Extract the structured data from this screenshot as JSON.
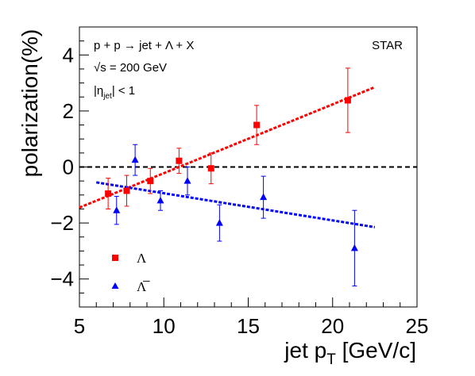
{
  "chart_data": {
    "type": "scatter",
    "xlabel_main": "jet p",
    "xlabel_sub": "T",
    "xlabel_unit": " [GeV/c]",
    "ylabel": "polarization(%)",
    "xlim": [
      5,
      25
    ],
    "ylim": [
      -5,
      5
    ],
    "x_ticks": [
      "5",
      "10",
      "15",
      "20",
      "25"
    ],
    "y_ticks": [
      "−4",
      "−2",
      "0",
      "2",
      "4"
    ],
    "annotations": {
      "process": "p + p → jet + Λ + X",
      "sqrt_prefix": "√",
      "sqrt_s": "s = 200 GeV",
      "eta_open": "|η",
      "eta_sub": "jet",
      "eta_close": "| < 1",
      "experiment": "STAR"
    },
    "reference_line_y": 0,
    "series": [
      {
        "name": "Λ",
        "color": "#ff0000",
        "marker": "square",
        "points": [
          {
            "x": 6.7,
            "y": -0.95,
            "err": 0.55
          },
          {
            "x": 7.8,
            "y": -0.85,
            "err": 0.55
          },
          {
            "x": 9.2,
            "y": -0.5,
            "err": 0.45
          },
          {
            "x": 10.9,
            "y": 0.22,
            "err": 0.45
          },
          {
            "x": 12.8,
            "y": -0.05,
            "err": 0.55
          },
          {
            "x": 15.5,
            "y": 1.5,
            "err": 0.7
          },
          {
            "x": 20.9,
            "y": 2.38,
            "err": 1.15
          }
        ],
        "fit": {
          "x": [
            5.0,
            22.5
          ],
          "y": [
            -1.45,
            2.85
          ]
        }
      },
      {
        "name": "Λ̅",
        "color": "#0000ff",
        "marker": "triangle",
        "points": [
          {
            "x": 7.2,
            "y": -1.55,
            "err": 0.5
          },
          {
            "x": 8.3,
            "y": 0.25,
            "err": 0.55
          },
          {
            "x": 9.8,
            "y": -1.2,
            "err": 0.35
          },
          {
            "x": 11.4,
            "y": -0.5,
            "err": 0.5
          },
          {
            "x": 13.3,
            "y": -2.0,
            "err": 0.65
          },
          {
            "x": 15.9,
            "y": -1.08,
            "err": 0.75
          },
          {
            "x": 21.3,
            "y": -2.9,
            "err": 1.35
          }
        ],
        "fit": {
          "x": [
            6.0,
            22.5
          ],
          "y": [
            -0.55,
            -2.15
          ]
        }
      }
    ]
  }
}
